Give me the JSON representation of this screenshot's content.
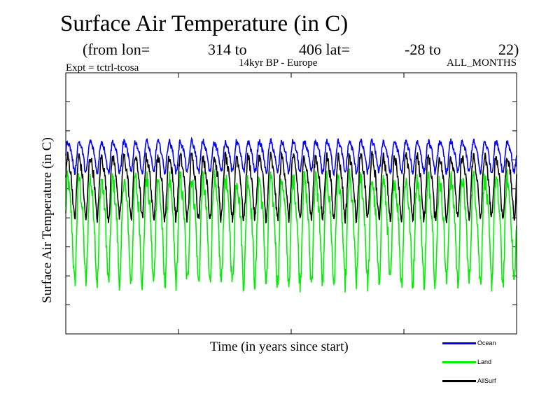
{
  "header": {
    "title": "Surface Air Temperature (in C)",
    "from_lon": "(from lon=",
    "lon_start": "314 to",
    "lon_end": "406 lat=",
    "lat_start": "-28 to",
    "lat_end": "22)",
    "expt": "Expt = tctrl-tcosa",
    "region": "14kyr BP - Europe",
    "months": "ALL_MONTHS"
  },
  "colors": {
    "ocean": "#0000ff",
    "land": "#00ee00",
    "allsurf": "#000000"
  },
  "chart_data": {
    "type": "line",
    "title": "Surface Air Temperature (in C)",
    "xlabel": "Time (in years since start)",
    "ylabel": "Surface Air Temperature (in C)",
    "x_ticks_shown": false,
    "y_ticks_shown": false,
    "legend_position": "bottom-right",
    "n_cycles": 40,
    "series": [
      {
        "name": "Ocean",
        "color": "#0000ff",
        "mean": 0.685,
        "amplitude": 0.055,
        "noise": 0.012
      },
      {
        "name": "Land",
        "color": "#00ee00",
        "mean": 0.42,
        "amplitude": 0.185,
        "noise": 0.04
      },
      {
        "name": "AllSurf",
        "color": "#000000",
        "mean": 0.575,
        "amplitude": 0.11,
        "noise": 0.022
      }
    ]
  }
}
